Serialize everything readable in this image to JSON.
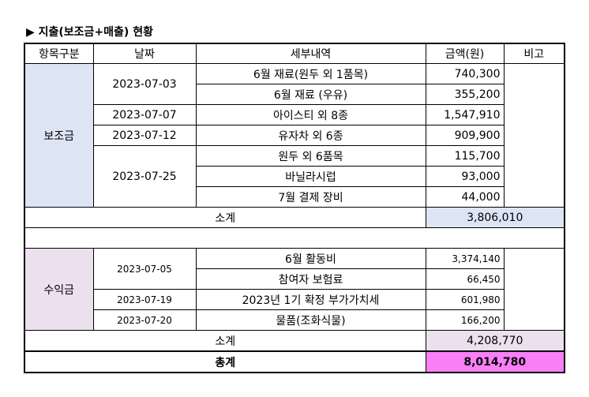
{
  "title": "▶ 지출(보조금+매출) 현황",
  "table": {
    "header": [
      "항목구분",
      "날짜",
      "세부내역",
      "금액(원)",
      "비고"
    ],
    "groups": [
      {
        "category": "보조금",
        "dates": [
          {
            "date": "2023-07-03",
            "items": [
              {
                "desc": "6월 재료(원두 외 1품목)",
                "amount": "740,300"
              },
              {
                "desc": "6월 재료 (우유)",
                "amount": "355,200"
              }
            ]
          },
          {
            "date": "2023-07-07",
            "items": [
              {
                "desc": "아이스티 외 8종",
                "amount": "1,547,910"
              }
            ]
          },
          {
            "date": "2023-07-12",
            "items": [
              {
                "desc": "유자차 외 6종",
                "amount": "909,900"
              }
            ]
          },
          {
            "date": "2023-07-25",
            "items": [
              {
                "desc": "원두 외 6품목",
                "amount": "115,700"
              },
              {
                "desc": "바닐라시럽",
                "amount": "93,000"
              },
              {
                "desc": "7월 결제 장비",
                "amount": "44,000"
              }
            ]
          }
        ],
        "subtotal_label": "소계",
        "subtotal": "3,806,010"
      },
      {
        "category": "수익금",
        "dates": [
          {
            "date": "2023-07-05",
            "items": [
              {
                "desc": "6월 활동비",
                "amount": "3,374,140"
              },
              {
                "desc": "참여자 보험료",
                "amount": "66,450"
              }
            ]
          },
          {
            "date": "2023-07-19",
            "items": [
              {
                "desc": "2023년 1기 확정 부가가치세",
                "amount": "601,980"
              }
            ]
          },
          {
            "date": "2023-07-20",
            "items": [
              {
                "desc": "물품(조화식물)",
                "amount": "166,200"
              }
            ]
          }
        ],
        "subtotal_label": "소계",
        "subtotal": "4,208,770"
      }
    ],
    "total_label": "총계",
    "total": "8,014,780"
  }
}
